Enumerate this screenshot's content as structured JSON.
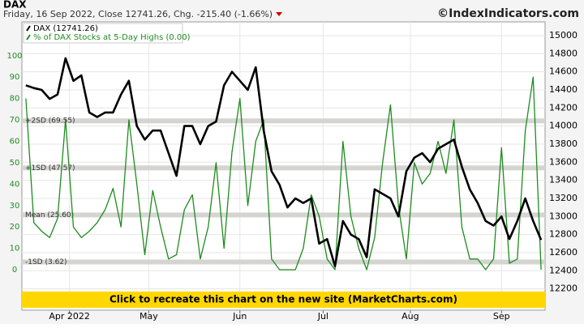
{
  "chart_data": {
    "type": "line",
    "title": "DAX",
    "subtitle": "Friday, 16 Sep 2022, Close 12741.26, Chg. -215.40 (-1.66%)",
    "source": "©IndexIndicators.com",
    "banner": "Click to recreate this chart on the new site (MarketCharts.com)",
    "x": [
      0,
      2,
      4,
      6,
      8,
      10,
      12,
      14,
      16,
      18,
      20,
      22,
      24,
      26,
      28,
      30,
      32,
      34,
      36,
      38,
      40,
      42,
      44,
      46,
      48,
      50,
      52,
      54,
      56,
      58,
      60,
      62,
      64,
      66,
      68,
      70,
      72,
      74,
      76,
      78,
      80,
      82,
      84,
      86,
      88,
      90,
      92,
      94,
      96,
      98,
      100,
      102,
      104,
      106,
      108,
      110,
      112,
      114,
      116,
      118,
      120,
      122,
      124,
      126,
      128,
      130
    ],
    "xlim": [
      -1,
      131
    ],
    "xticks": [
      {
        "value": 11,
        "label": "Apr 2022"
      },
      {
        "value": 31,
        "label": "May"
      },
      {
        "value": 54,
        "label": "Jun"
      },
      {
        "value": 75,
        "label": "Jul"
      },
      {
        "value": 97,
        "label": "Aug"
      },
      {
        "value": 120,
        "label": "Sep"
      }
    ],
    "ylim": [
      -18.9,
      115.8
    ],
    "yticks": [
      0,
      10,
      20,
      30,
      40,
      50,
      60,
      70,
      80,
      90,
      100
    ],
    "y2lim": [
      11964,
      15152
    ],
    "y2ticks": [
      12200,
      12400,
      12600,
      12800,
      13000,
      13200,
      13400,
      13600,
      13800,
      14000,
      14200,
      14400,
      14600,
      14800,
      15000
    ],
    "grid": true,
    "legend": "upper left",
    "bands": [
      {
        "value": 69.55,
        "label": "+2SD (69.55)"
      },
      {
        "value": 47.57,
        "label": "+1SD (47.57)"
      },
      {
        "value": 25.6,
        "label": "Mean (25.60)"
      },
      {
        "value": 3.62,
        "label": "-1SD (3.62)"
      }
    ],
    "series": [
      {
        "name": "DAX (12741.26)",
        "color": "#000000",
        "axis": "y2",
        "values": [
          14450,
          14420,
          14400,
          14300,
          14350,
          14750,
          14500,
          14560,
          14150,
          14100,
          14150,
          14150,
          14350,
          14500,
          14000,
          13850,
          13950,
          13950,
          13700,
          13450,
          14000,
          14000,
          13800,
          14000,
          14050,
          14450,
          14600,
          14500,
          14400,
          14650,
          13950,
          13500,
          13350,
          13100,
          13200,
          13150,
          13200,
          12700,
          12750,
          12450,
          12950,
          12800,
          12750,
          12550,
          13300,
          13250,
          13200,
          13000,
          13500,
          13650,
          13700,
          13600,
          13750,
          13800,
          13850,
          13550,
          13300,
          13150,
          12950,
          12900,
          13000,
          12750,
          12950,
          13200,
          12950,
          12741.26
        ]
      },
      {
        "name": "% of DAX Stocks at 5-Day Highs (0.00)",
        "color": "#1e8c1e",
        "values": [
          80,
          22,
          18,
          15,
          24,
          70,
          20,
          15,
          18,
          22,
          28,
          38,
          20,
          70,
          40,
          7,
          37,
          20,
          5,
          7,
          28,
          35,
          5,
          20,
          50,
          10,
          55,
          80,
          30,
          60,
          70,
          5,
          0,
          0,
          0,
          10,
          35,
          25,
          5,
          0,
          60,
          25,
          10,
          0,
          15,
          50,
          77,
          30,
          5,
          50,
          40,
          45,
          60,
          45,
          70,
          20,
          5,
          5,
          0,
          5,
          57,
          3,
          5,
          65,
          90,
          0
        ]
      }
    ]
  }
}
